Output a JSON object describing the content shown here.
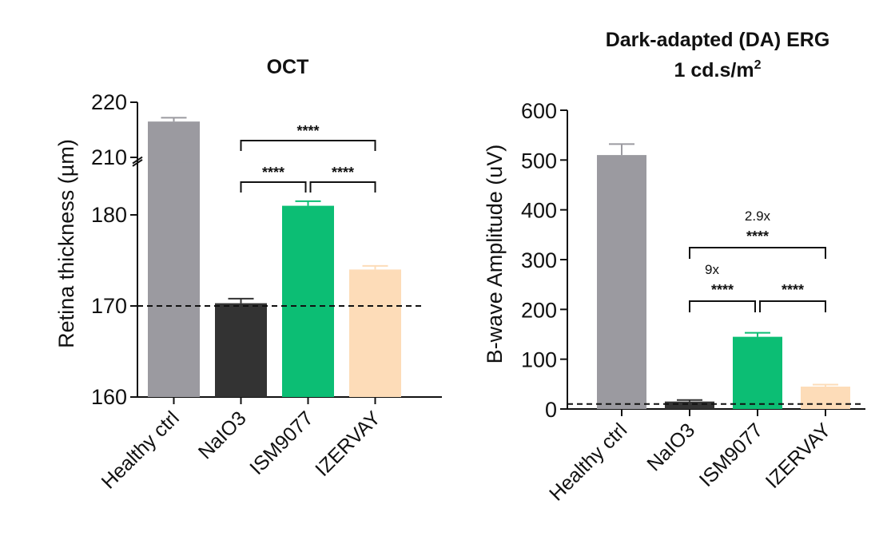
{
  "chart_data": [
    {
      "type": "bar",
      "title": "OCT",
      "ylabel": "Retina thickness (µm)",
      "categories": [
        "Healthy ctrl",
        "NaIO3",
        "ISM9077",
        "IZERVAY"
      ],
      "values": [
        216.5,
        170.3,
        181.0,
        174.0
      ],
      "errors": [
        0.7,
        0.5,
        0.5,
        0.4
      ],
      "colors": [
        "#9b9aa0",
        "#333333",
        "#0cbe74",
        "#fddcb8"
      ],
      "yticks": [
        "160",
        "170",
        "180",
        "210",
        "220"
      ],
      "ylim": [
        160,
        220
      ],
      "axis_break": [
        186,
        209
      ],
      "reference_line": 170,
      "comparisons": [
        {
          "from": 2,
          "to": 3,
          "label": "****"
        },
        {
          "from": 1,
          "to": 2,
          "label": "****"
        },
        {
          "from": 1,
          "to": 3,
          "label": "****"
        }
      ]
    },
    {
      "type": "bar",
      "title": "Dark-adapted (DA) ERG",
      "subtitle_main": "1 cd.s/m",
      "subtitle_sup": "2",
      "ylabel": "B-wave Amplitude (uV)",
      "categories": [
        "Healthy ctrl",
        "NaIO3",
        "ISM9077",
        "IZERVAY"
      ],
      "values": [
        510,
        15,
        145,
        45
      ],
      "errors": [
        22,
        3,
        8,
        4
      ],
      "colors": [
        "#9b9aa0",
        "#333333",
        "#0cbe74",
        "#fddcb8"
      ],
      "yticks": [
        "0",
        "100",
        "200",
        "300",
        "400",
        "500",
        "600"
      ],
      "ylim": [
        0,
        600
      ],
      "reference_line": 10,
      "comparisons": [
        {
          "from": 1,
          "to": 2,
          "label": "****",
          "fold": "9x"
        },
        {
          "from": 2,
          "to": 3,
          "label": "****"
        },
        {
          "from": 1,
          "to": 3,
          "label": "****",
          "fold": "2.9x"
        }
      ]
    }
  ]
}
